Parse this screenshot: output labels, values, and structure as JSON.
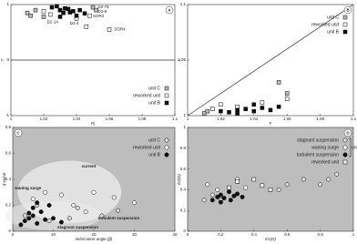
{
  "chart_data": [
    {
      "type": "scatter",
      "panel": "A",
      "x_label": "Pj",
      "y_label": "T",
      "xlim": [
        1,
        1.1
      ],
      "xticks": [
        1,
        1.02,
        1.04,
        1.06,
        1.08,
        1.1
      ],
      "ylim": [
        -1,
        1
      ],
      "yticks": [
        -1,
        0,
        1
      ],
      "hline": 0,
      "legend": "lower right",
      "background": "#ffffff",
      "series": [
        {
          "name": "unit C",
          "color": "#bdbdbd",
          "marker": "square",
          "x": [
            1.01,
            1.012,
            1.015,
            1.02,
            1.05,
            1.052
          ],
          "values": [
            0.85,
            0.8,
            0.9,
            0.78,
            0.95,
            0.9
          ]
        },
        {
          "name": "reworked unit",
          "color": "#ffffff",
          "marker": "square",
          "x": [
            1.02,
            1.024,
            1.03,
            1.04,
            1.046,
            1.048,
            1.06
          ],
          "values": [
            0.88,
            0.82,
            0.9,
            0.75,
            0.6,
            0.8,
            0.55
          ]
        },
        {
          "name": "unit B",
          "color": "#111111",
          "marker": "square",
          "x": [
            1.025,
            1.03,
            1.032,
            1.035,
            1.038,
            1.04,
            1.028,
            1.033,
            1.036,
            1.042,
            1.045,
            1.03
          ],
          "values": [
            0.95,
            0.9,
            0.85,
            0.92,
            0.88,
            0.8,
            0.97,
            0.93,
            0.86,
            0.9,
            0.84,
            0.78
          ]
        }
      ],
      "annotations": [
        {
          "text": "D2-79",
          "x": 1.053,
          "y": 0.95
        },
        {
          "text": "D2-8",
          "x": 1.053,
          "y": 0.87
        },
        {
          "text": "SOR2",
          "x": 1.05,
          "y": 0.79
        },
        {
          "text": "SOR4",
          "x": 1.063,
          "y": 0.55
        },
        {
          "text": "D2-14",
          "x": 1.022,
          "y": 0.68
        },
        {
          "text": "D2-4",
          "x": 1.036,
          "y": 0.66
        }
      ]
    },
    {
      "type": "scatter",
      "panel": "B",
      "x_label": "F",
      "y_label": "L",
      "xlim": [
        1,
        1.1
      ],
      "xticks": [
        1,
        1.02,
        1.04,
        1.06,
        1.08,
        1.1
      ],
      "ylim": [
        1,
        1.1
      ],
      "yticks": [
        1,
        1.05,
        1.1
      ],
      "diagonal": true,
      "legend": "upper right",
      "background": "#ffffff",
      "series": [
        {
          "name": "unit C",
          "color": "#bdbdbd",
          "marker": "square",
          "x": [
            1.01,
            1.012,
            1.055,
            1.06
          ],
          "values": [
            1.002,
            1.004,
            1.03,
            1.02
          ]
        },
        {
          "name": "reworked unit",
          "color": "#ffffff",
          "marker": "square",
          "x": [
            1.015,
            1.02,
            1.03,
            1.045,
            1.06
          ],
          "values": [
            1.006,
            1.01,
            1.008,
            1.012,
            1.015
          ]
        },
        {
          "name": "unit B",
          "color": "#111111",
          "marker": "square",
          "x": [
            1.02,
            1.025,
            1.03,
            1.035,
            1.04,
            1.045,
            1.05,
            1.055,
            1.03,
            1.04
          ],
          "values": [
            1.004,
            1.003,
            1.005,
            1.006,
            1.004,
            1.007,
            1.005,
            1.008,
            1.002,
            1.01
          ]
        }
      ]
    },
    {
      "type": "scatter",
      "panel": "C",
      "x_label": "imbrication angle (β)",
      "y_label": "q-value",
      "xlim": [
        0,
        40
      ],
      "xticks": [
        0,
        10,
        20,
        30,
        40
      ],
      "ylim": [
        0,
        0.8
      ],
      "yticks": [
        0,
        0.2,
        0.4,
        0.6,
        0.8
      ],
      "legend": "upper right",
      "background": "#bdbdbd",
      "regions": true,
      "series": [
        {
          "name": "unit C",
          "color": "#d9d9d9",
          "marker": "circle",
          "x": [
            3,
            6,
            9,
            14,
            16,
            22,
            26
          ],
          "values": [
            0.12,
            0.2,
            0.08,
            0.1,
            0.18,
            0.12,
            0.16
          ]
        },
        {
          "name": "reworked unit",
          "color": "#ffffff",
          "marker": "circle",
          "x": [
            5,
            8,
            12,
            15,
            18,
            20,
            25,
            30
          ],
          "values": [
            0.25,
            0.3,
            0.28,
            0.2,
            0.15,
            0.3,
            0.26,
            0.22
          ]
        },
        {
          "name": "unit B",
          "color": "#111111",
          "marker": "circle",
          "x": [
            2,
            3,
            4,
            5,
            6,
            7,
            8,
            9,
            10,
            12,
            5,
            6,
            4
          ],
          "values": [
            0.05,
            0.08,
            0.1,
            0.12,
            0.06,
            0.15,
            0.09,
            0.2,
            0.1,
            0.07,
            0.18,
            0.22,
            0.14
          ]
        }
      ],
      "annotations": [
        {
          "text": "current",
          "x": 17,
          "y": 0.5
        },
        {
          "text": "waning surge",
          "x": 0.5,
          "y": 0.33
        },
        {
          "text": "turbulent suspension",
          "x": 21,
          "y": 0.1
        },
        {
          "text": "stagnant suspension",
          "x": 11,
          "y": 0.03
        }
      ]
    },
    {
      "type": "scatter",
      "panel": "D",
      "x_label": "E1(D)",
      "y_label": "E2(D)",
      "xlim": [
        0,
        1
      ],
      "xticks": [
        0,
        0.2,
        0.4,
        0.6,
        0.8,
        1
      ],
      "ylim": [
        0,
        1
      ],
      "yticks": [
        0,
        0.2,
        0.4,
        0.6,
        0.8,
        1
      ],
      "legend": "upper right",
      "background": "#bdbdbd",
      "legend_group": "unit B,C",
      "series": [
        {
          "name": "stagnant suspension",
          "color": "#e0e0e0",
          "marker": "circle",
          "x": [
            0.1,
            0.15,
            0.2,
            0.55,
            0.6,
            0.7,
            0.8,
            0.85,
            0.9
          ],
          "values": [
            0.3,
            0.35,
            0.3,
            0.4,
            0.45,
            0.5,
            0.45,
            0.5,
            0.55
          ]
        },
        {
          "name": "waning surge",
          "color": "#ffffff",
          "marker": "circle",
          "x": [
            0.12,
            0.18,
            0.3,
            0.35
          ],
          "values": [
            0.45,
            0.4,
            0.5,
            0.42
          ]
        },
        {
          "name": "turbulent suspension",
          "color": "#111111",
          "marker": "circle",
          "x": [
            0.15,
            0.18,
            0.2,
            0.22,
            0.25,
            0.28,
            0.3,
            0.33,
            0.2,
            0.26
          ],
          "values": [
            0.3,
            0.33,
            0.35,
            0.32,
            0.38,
            0.34,
            0.36,
            0.33,
            0.28,
            0.3
          ]
        },
        {
          "name": "reworked unit",
          "color": "#ffffff",
          "marker": "square",
          "x": [
            0.25,
            0.3,
            0.4,
            0.45,
            0.5
          ],
          "values": [
            0.42,
            0.48,
            0.5,
            0.44,
            0.4
          ]
        }
      ]
    }
  ]
}
